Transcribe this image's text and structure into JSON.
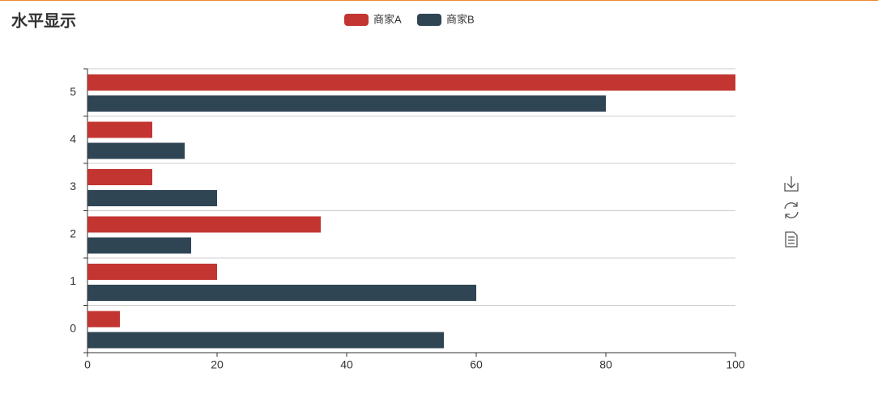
{
  "chart_data": {
    "type": "hbar",
    "title": "水平显示",
    "categories": [
      "0",
      "1",
      "2",
      "3",
      "4",
      "5"
    ],
    "series": [
      {
        "name": "商家A",
        "color": "#c23531",
        "values": [
          5,
          20,
          36,
          10,
          10,
          100
        ]
      },
      {
        "name": "商家B",
        "color": "#2f4554",
        "values": [
          55,
          60,
          16,
          20,
          15,
          80
        ]
      }
    ],
    "xlim": [
      0,
      100
    ],
    "xticks": [
      0,
      20,
      40,
      60,
      80,
      100
    ],
    "grid": true,
    "legend_position": "top"
  }
}
